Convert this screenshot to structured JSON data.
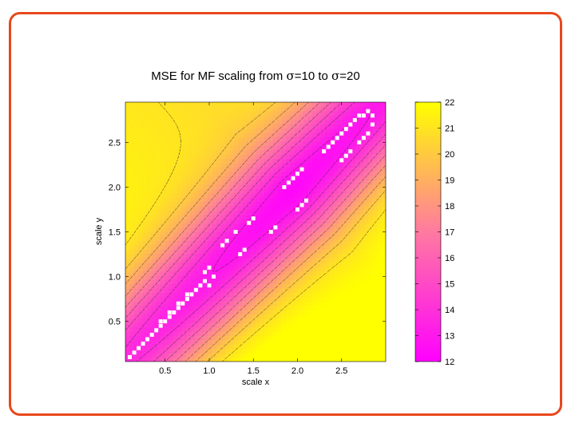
{
  "colors": {
    "frame": "#e8481c",
    "low": "#ff00ff",
    "mid": "#ff7aa0",
    "high": "#ffff00"
  },
  "chart_data": {
    "type": "heatmap",
    "title": "MSE for MF scaling from σ=10 to σ=20",
    "title_parts": {
      "prefix": "MSE for MF scaling from ",
      "sym1": "σ",
      "mid": "=10 to ",
      "sym2": "σ",
      "suffix": "=20"
    },
    "xlabel": "scale x",
    "ylabel": "scale y",
    "xlim": [
      0.05,
      3.0
    ],
    "ylim": [
      0.05,
      2.95
    ],
    "xticks": [
      0.5,
      1.0,
      1.5,
      2.0,
      2.5
    ],
    "xtick_labels": [
      "0.5",
      "1.0",
      "1.5",
      "2.0",
      "2.5"
    ],
    "yticks": [
      0.5,
      1.0,
      1.5,
      2.0,
      2.5
    ],
    "ytick_labels": [
      "0.5",
      "1.0",
      "1.5",
      "2.0",
      "2.5"
    ],
    "colorbar": {
      "range": [
        12,
        22
      ],
      "ticks": [
        12,
        13,
        14,
        15,
        16,
        17,
        18,
        19,
        20,
        21,
        22
      ],
      "tick_labels": [
        "12",
        "13",
        "14",
        "15",
        "16",
        "17",
        "18",
        "19",
        "20",
        "21",
        "22"
      ]
    },
    "contour_levels": [
      13,
      14,
      15,
      16,
      17,
      18,
      19,
      20,
      21
    ],
    "minimum_valley": {
      "description": "MSE minimum lies along diagonal ridge",
      "from": [
        0.1,
        0.1
      ],
      "to": [
        2.8,
        2.8
      ],
      "min_point": [
        1.9,
        2.0
      ]
    },
    "marked_points": [
      [
        0.1,
        0.1
      ],
      [
        0.15,
        0.15
      ],
      [
        0.2,
        0.2
      ],
      [
        0.25,
        0.25
      ],
      [
        0.3,
        0.3
      ],
      [
        0.35,
        0.35
      ],
      [
        0.4,
        0.4
      ],
      [
        0.45,
        0.45
      ],
      [
        0.5,
        0.5
      ],
      [
        0.55,
        0.55
      ],
      [
        0.6,
        0.6
      ],
      [
        0.65,
        0.65
      ],
      [
        0.7,
        0.7
      ],
      [
        0.75,
        0.75
      ],
      [
        0.8,
        0.8
      ],
      [
        0.85,
        0.85
      ],
      [
        0.9,
        0.9
      ],
      [
        0.45,
        0.5
      ],
      [
        0.55,
        0.6
      ],
      [
        0.65,
        0.7
      ],
      [
        0.75,
        0.8
      ],
      [
        0.95,
        0.95
      ],
      [
        1.0,
        0.9
      ],
      [
        0.95,
        1.05
      ],
      [
        1.0,
        1.1
      ],
      [
        1.05,
        1.0
      ],
      [
        1.15,
        1.35
      ],
      [
        1.2,
        1.4
      ],
      [
        1.3,
        1.5
      ],
      [
        1.35,
        1.25
      ],
      [
        1.4,
        1.3
      ],
      [
        1.45,
        1.6
      ],
      [
        1.5,
        1.65
      ],
      [
        1.7,
        1.5
      ],
      [
        1.75,
        1.55
      ],
      [
        1.85,
        2.0
      ],
      [
        1.9,
        2.05
      ],
      [
        1.95,
        2.1
      ],
      [
        2.0,
        2.15
      ],
      [
        2.05,
        2.2
      ],
      [
        2.0,
        1.75
      ],
      [
        2.05,
        1.8
      ],
      [
        2.1,
        1.85
      ],
      [
        2.3,
        2.4
      ],
      [
        2.35,
        2.45
      ],
      [
        2.4,
        2.5
      ],
      [
        2.45,
        2.55
      ],
      [
        2.5,
        2.6
      ],
      [
        2.55,
        2.65
      ],
      [
        2.6,
        2.7
      ],
      [
        2.65,
        2.75
      ],
      [
        2.7,
        2.8
      ],
      [
        2.75,
        2.8
      ],
      [
        2.8,
        2.85
      ],
      [
        2.85,
        2.8
      ],
      [
        2.85,
        2.7
      ],
      [
        2.8,
        2.6
      ],
      [
        2.75,
        2.55
      ],
      [
        2.7,
        2.5
      ],
      [
        2.6,
        2.4
      ],
      [
        2.55,
        2.35
      ],
      [
        2.5,
        2.3
      ]
    ]
  }
}
